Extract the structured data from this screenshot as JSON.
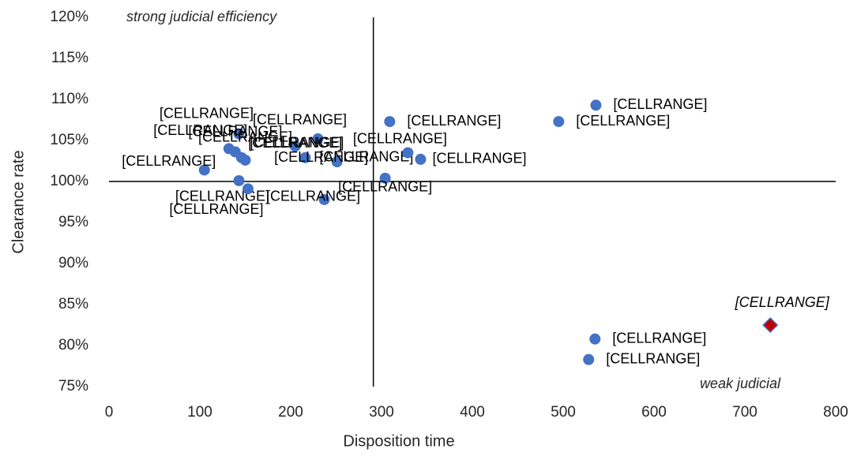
{
  "chart_data": {
    "type": "scatter",
    "xlabel": "Disposition time",
    "ylabel": "Clearance rate",
    "annotations": [
      "strong judicial efficiency",
      "weak judicial"
    ],
    "xlim": [
      0,
      800
    ],
    "ylim": [
      75,
      120
    ],
    "xticks": [
      0,
      100,
      200,
      300,
      400,
      500,
      600,
      700,
      800
    ],
    "yticks": [
      {
        "value": 75,
        "label": "75%"
      },
      {
        "value": 80,
        "label": "80%"
      },
      {
        "value": 85,
        "label": "85%"
      },
      {
        "value": 90,
        "label": "90%"
      },
      {
        "value": 95,
        "label": "95%"
      },
      {
        "value": 100,
        "label": "100%"
      },
      {
        "value": 105,
        "label": "105%"
      },
      {
        "value": 110,
        "label": "110%"
      },
      {
        "value": 115,
        "label": "115%"
      },
      {
        "value": 120,
        "label": "120%"
      }
    ],
    "reference_lines": {
      "x": 291,
      "y": 100
    },
    "series": [
      {
        "color": "#4472c4",
        "marker": "circle",
        "x": [
          536,
          309,
          495,
          230,
          205,
          143,
          132,
          139,
          146,
          150,
          216,
          251,
          329,
          343,
          105,
          304,
          143,
          153,
          237,
          535,
          528
        ],
        "values": [
          109.3,
          107.3,
          107.3,
          105.2,
          104.3,
          105.8,
          104.0,
          103.6,
          102.9,
          102.6,
          102.9,
          102.4,
          103.5,
          102.7,
          101.4,
          100.4,
          100.1,
          99.1,
          97.8,
          80.8,
          78.3
        ],
        "labels": [
          "[CELLRANGE]",
          "[CELLRANGE]",
          "[CELLRANGE]",
          "[CELLRANGE]",
          "[CELLRANGE]",
          "[CELLRANGE]",
          "[CELLRANGE]",
          "[CELLRANGE]",
          "[CELLRANGE]",
          "[CELLRANGE]",
          "[CELLRANGE]",
          "[CELLRANGE]",
          "[CELLRANGE]",
          "[CELLRANGE]",
          "[CELLRANGE]",
          "[CELLRANGE]",
          "[CELLRANGE]",
          "[CELLRANGE]",
          "[CELLRANGE]",
          "[CELLRANGE]",
          "[CELLRANGE]"
        ]
      },
      {
        "color": "#c00000",
        "marker": "diamond",
        "italic": true,
        "x": [
          728
        ],
        "values": [
          82.5
        ],
        "labels": [
          "[CELLRANGE]"
        ]
      }
    ]
  }
}
